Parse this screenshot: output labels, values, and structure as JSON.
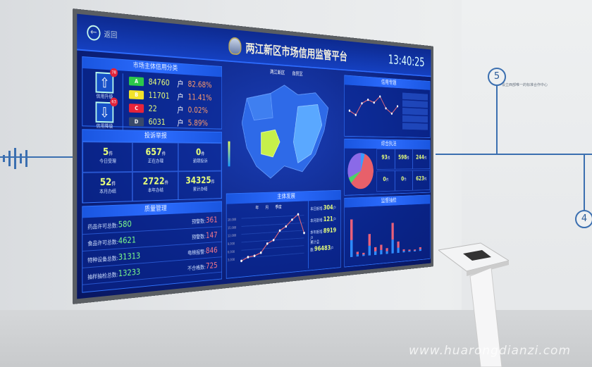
{
  "room": {
    "watermark": "www.huarongdianzi.com",
    "step5": "5",
    "step4": "4",
    "wall_text": "设立西部唯一的标准合作中心"
  },
  "header": {
    "back_label": "返回",
    "title": "两江新区市场信用监管平台",
    "time": "13:40:25"
  },
  "credit": {
    "title": "市场主体信用分类",
    "upgrade_label": "信用升级",
    "upgrade_count": "78",
    "downgrade_label": "信用降级",
    "downgrade_count": "63",
    "grades": [
      {
        "grade": "A",
        "count": "84760",
        "unit": "户",
        "pct": "82.68%",
        "color": "#2cc84a"
      },
      {
        "grade": "B",
        "count": "11701",
        "unit": "户",
        "pct": "11.41%",
        "color": "#f2e22a"
      },
      {
        "grade": "C",
        "count": "22",
        "unit": "户",
        "pct": "0.02%",
        "color": "#e8243a"
      },
      {
        "grade": "D",
        "count": "6031",
        "unit": "户",
        "pct": "5.89%",
        "color": "#3a4a6a"
      }
    ]
  },
  "complaints": {
    "title": "投诉举报",
    "unit": "件",
    "items": [
      {
        "value": "5",
        "label": "今日受理"
      },
      {
        "value": "657",
        "label": "正在办理"
      },
      {
        "value": "0",
        "label": "逾期投诉"
      },
      {
        "value": "52",
        "label": "本月办结"
      },
      {
        "value": "2722",
        "label": "本年办结"
      },
      {
        "value": "34325",
        "label": "累计办结"
      }
    ]
  },
  "quality": {
    "title": "质量管理",
    "rows": [
      {
        "l": "药品许可总数:",
        "lv": "580",
        "r": "预警数:",
        "rv": "361"
      },
      {
        "l": "食品许可总数:",
        "lv": "4621",
        "r": "预警数:",
        "rv": "147"
      },
      {
        "l": "特种设备总数:",
        "lv": "31313",
        "r": "电梯报警:",
        "rv": "846"
      },
      {
        "l": "抽样抽检总数:",
        "lv": "13233",
        "r": "不合格数:",
        "rv": "725"
      }
    ]
  },
  "map": {
    "legend": [
      "两江新区",
      "自贸区"
    ]
  },
  "growth": {
    "title": "主体发展",
    "legend": [
      "年",
      "月",
      "季度"
    ],
    "stats": [
      {
        "label": "本日新增:",
        "value": "304",
        "unit": "户"
      },
      {
        "label": "本月新增:",
        "value": "121",
        "unit": "户"
      },
      {
        "label": "本年新增:",
        "value": "8919",
        "unit": "户"
      },
      {
        "label": "累计总数:",
        "value": "96483",
        "unit": "户"
      }
    ],
    "yticks": [
      "18,000",
      "15,000",
      "12,000",
      "9,000",
      "6,000",
      "3,000"
    ],
    "values": [
      2000,
      3200,
      3500,
      4500,
      7800,
      9000,
      12500,
      14000,
      16500,
      18500,
      11000
    ]
  },
  "credit_topic": {
    "title": "信用专题",
    "values": [
      140,
      110,
      200,
      230,
      210,
      260,
      170,
      130,
      190
    ]
  },
  "enforcement": {
    "title": "综合执法",
    "unit": "件",
    "items": [
      "93",
      "598",
      "244",
      "0",
      "0",
      "623"
    ]
  },
  "inspection": {
    "title": "监督抽检",
    "bars": [
      95,
      12,
      8,
      55,
      20,
      25,
      15,
      80,
      30,
      8,
      6,
      5,
      10
    ]
  }
}
